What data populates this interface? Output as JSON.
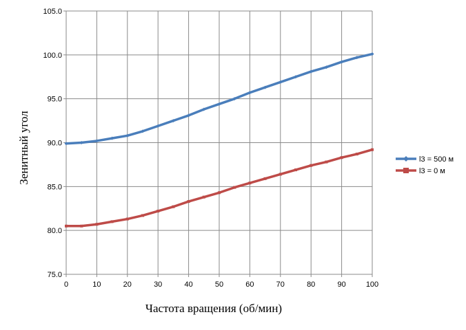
{
  "chart_data": {
    "type": "line",
    "title": "",
    "xlabel": "Частота вращения (об/мин)",
    "ylabel": "Зенитный угол",
    "xlim": [
      0,
      100
    ],
    "ylim": [
      75.0,
      105.0
    ],
    "x_ticks": [
      "0",
      "10",
      "20",
      "30",
      "40",
      "50",
      "60",
      "70",
      "80",
      "90",
      "100"
    ],
    "y_ticks": [
      "75.0",
      "80.0",
      "85.0",
      "90.0",
      "95.0",
      "100.0",
      "105.0"
    ],
    "grid": true,
    "legend_position": "right",
    "x": [
      0,
      5,
      10,
      15,
      20,
      25,
      30,
      35,
      40,
      45,
      50,
      55,
      60,
      65,
      70,
      75,
      80,
      85,
      90,
      95,
      100
    ],
    "series": [
      {
        "name": "l3 = 500 м",
        "color": "#4a7ebb",
        "marker": "diamond",
        "values": [
          89.9,
          90.0,
          90.2,
          90.5,
          90.8,
          91.3,
          91.9,
          92.5,
          93.1,
          93.8,
          94.4,
          95.0,
          95.7,
          96.3,
          96.9,
          97.5,
          98.1,
          98.6,
          99.2,
          99.7,
          100.1
        ]
      },
      {
        "name": "l3 = 0 м",
        "color": "#be4b48",
        "marker": "square",
        "values": [
          80.5,
          80.5,
          80.7,
          81.0,
          81.3,
          81.7,
          82.2,
          82.7,
          83.3,
          83.8,
          84.3,
          84.9,
          85.4,
          85.9,
          86.4,
          86.9,
          87.4,
          87.8,
          88.3,
          88.7,
          89.2
        ]
      }
    ]
  }
}
